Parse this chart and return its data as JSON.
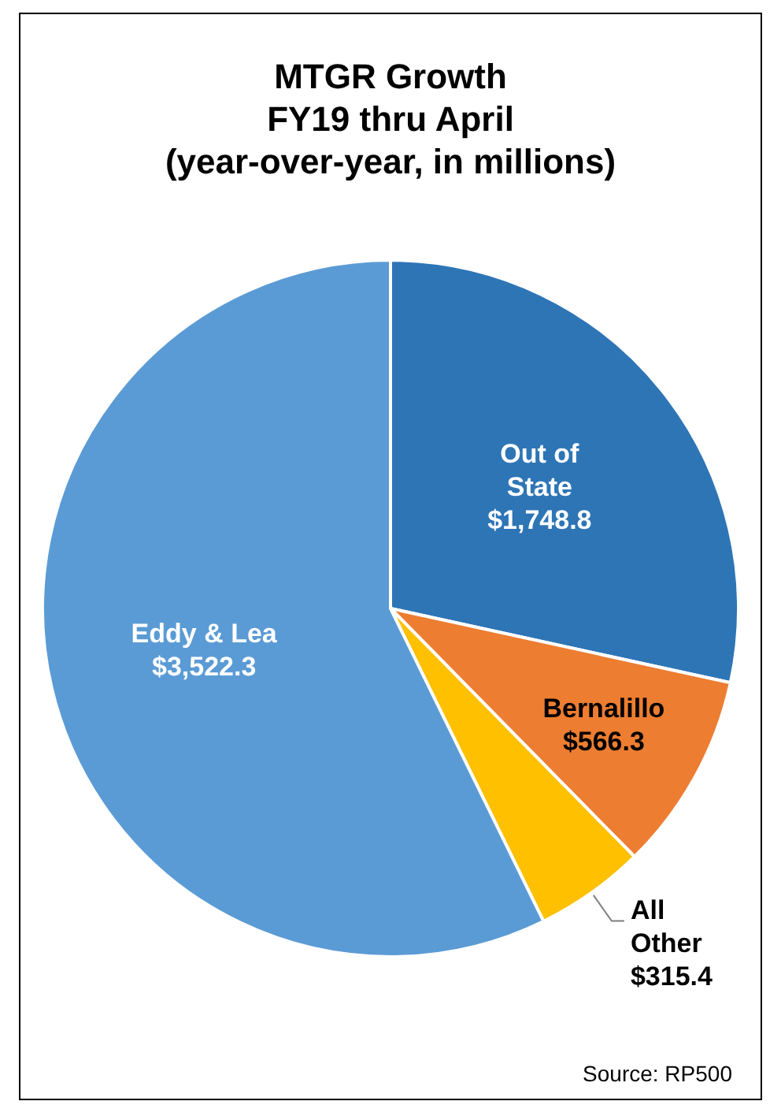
{
  "chart_data": {
    "type": "pie",
    "title": "MTGR Growth\nFY19 thru April\n(year-over-year,  in millions)",
    "categories": [
      "Out of State",
      "Bernalillo",
      "All Other",
      "Eddy & Lea"
    ],
    "values": [
      1748.8,
      566.3,
      315.4,
      3522.3
    ],
    "colors": [
      "#2e75b6",
      "#ed7d31",
      "#ffc000",
      "#5b9bd5"
    ],
    "value_labels": [
      "$1,748.8",
      "$566.3",
      "$315.4",
      "$3,522.3"
    ],
    "legend": false,
    "annotations": [
      "Source: RP500"
    ]
  }
}
